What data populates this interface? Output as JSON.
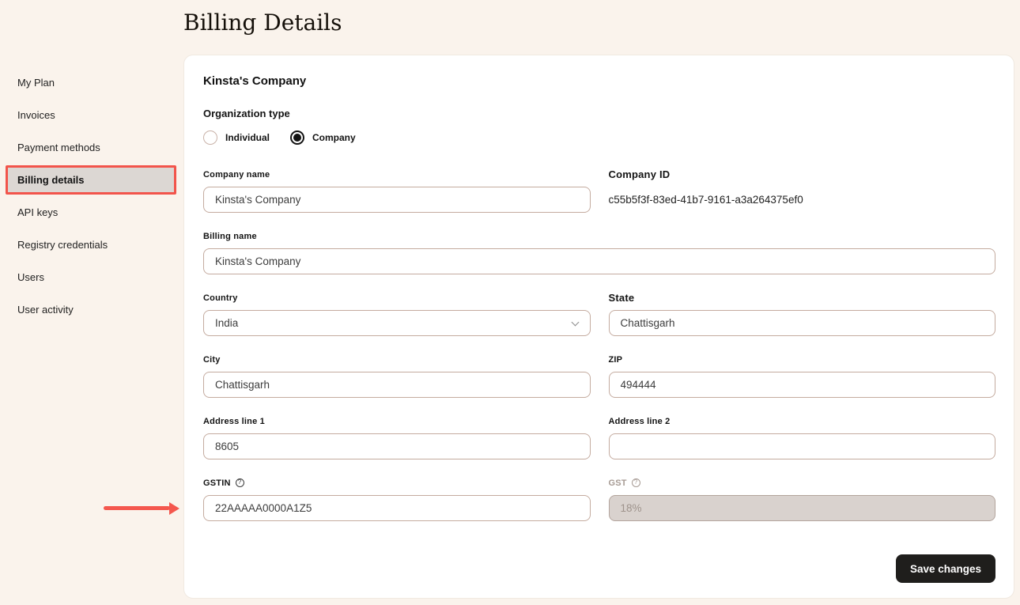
{
  "page": {
    "title": "Billing Details"
  },
  "sidebar": {
    "items": [
      {
        "label": "My Plan",
        "active": false
      },
      {
        "label": "Invoices",
        "active": false
      },
      {
        "label": "Payment methods",
        "active": false
      },
      {
        "label": "Billing details",
        "active": true
      },
      {
        "label": "API keys",
        "active": false
      },
      {
        "label": "Registry credentials",
        "active": false
      },
      {
        "label": "Users",
        "active": false
      },
      {
        "label": "User activity",
        "active": false
      }
    ]
  },
  "card": {
    "heading": "Kinsta's Company",
    "organization_type": {
      "label": "Organization type",
      "selected": "Company",
      "options": [
        {
          "label": "Individual",
          "selected": false
        },
        {
          "label": "Company",
          "selected": true
        }
      ]
    },
    "fields": {
      "company_name": {
        "label": "Company name",
        "value": "Kinsta's Company"
      },
      "company_id": {
        "label": "Company ID",
        "value": "c55b5f3f-83ed-41b7-9161-a3a264375ef0"
      },
      "billing_name": {
        "label": "Billing name",
        "value": "Kinsta's Company"
      },
      "country": {
        "label": "Country",
        "value": "India"
      },
      "state": {
        "label": "State",
        "value": "Chattisgarh"
      },
      "city": {
        "label": "City",
        "value": "Chattisgarh"
      },
      "zip": {
        "label": "ZIP",
        "value": "494444"
      },
      "address1": {
        "label": "Address line 1",
        "value": "8605"
      },
      "address2": {
        "label": "Address line 2",
        "value": ""
      },
      "gstin": {
        "label": "GSTIN",
        "value": "22AAAAA0000A1Z5"
      },
      "gst": {
        "label": "GST",
        "value": "18%",
        "disabled": true
      }
    },
    "footer": {
      "save_label": "Save changes"
    }
  },
  "icons": {
    "help": "?"
  },
  "colors": {
    "page_background": "#faf3ec",
    "highlight_red": "#f2544b",
    "arrow_red": "#f4574e",
    "button_dark": "#1f1e1c",
    "disabled_field_bg": "#d9d2ce",
    "input_border": "#c4ab9f"
  }
}
